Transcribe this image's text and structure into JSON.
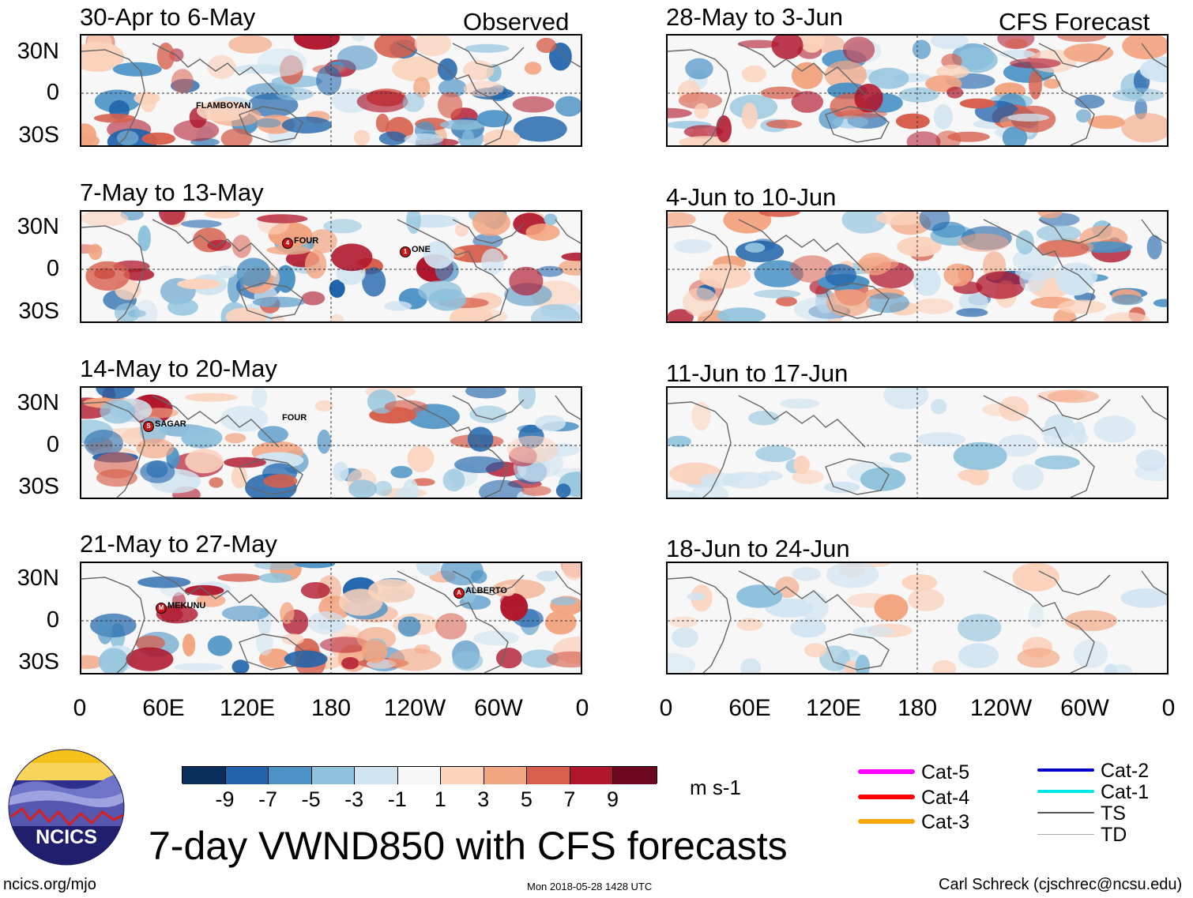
{
  "labels": {
    "observed": "Observed",
    "forecast": "CFS Forecast",
    "lat_n": "30N",
    "lat_0": "0",
    "lat_s": "30S",
    "lon_ticks": [
      "0",
      "60E",
      "120E",
      "180",
      "120W",
      "60W",
      "0"
    ]
  },
  "observed_panels": [
    {
      "period": "30-Apr to 6-May",
      "storms": [
        {
          "name": "FLAMBOYAN",
          "marker": ""
        }
      ]
    },
    {
      "period": "7-May to 13-May",
      "storms": [
        {
          "name": "FOUR",
          "marker": "4"
        },
        {
          "name": "ONE",
          "marker": "1"
        }
      ]
    },
    {
      "period": "14-May to 20-May",
      "storms": [
        {
          "name": "SAGAR",
          "marker": "S"
        },
        {
          "name": "FOUR",
          "marker": ""
        }
      ]
    },
    {
      "period": "21-May to 27-May",
      "storms": [
        {
          "name": "MEKUNU",
          "marker": "M"
        },
        {
          "name": "ALBERTO",
          "marker": "A"
        }
      ]
    }
  ],
  "forecast_panels": [
    {
      "period": "28-May to 3-Jun"
    },
    {
      "period": "4-Jun to 10-Jun"
    },
    {
      "period": "11-Jun to 17-Jun"
    },
    {
      "period": "18-Jun to 24-Jun"
    }
  ],
  "colorbar": {
    "colors": [
      "#0a2e5c",
      "#1f64ab",
      "#4b92c5",
      "#8fc2dd",
      "#d0e4f1",
      "#f7f7f7",
      "#fbd2bc",
      "#f3a480",
      "#d75f4c",
      "#b0162c",
      "#6c0720"
    ],
    "tick_labels": [
      "-9",
      "-7",
      "-5",
      "-3",
      "-1",
      "1",
      "3",
      "5",
      "7",
      "9"
    ],
    "units": "m s-1"
  },
  "track_legend": [
    {
      "label": "Cat-5",
      "color": "#ff00ff"
    },
    {
      "label": "Cat-4",
      "color": "#ff0000"
    },
    {
      "label": "Cat-3",
      "color": "#ffa500"
    },
    {
      "label": "Cat-2",
      "color": "#0000cd"
    },
    {
      "label": "Cat-1",
      "color": "#00e5e5"
    },
    {
      "label": "TS",
      "color": "#555555"
    },
    {
      "label": "TD",
      "color": "#aaaaaa"
    }
  ],
  "logo": {
    "text": "NCICS"
  },
  "main_title": "7-day VWND850 with CFS forecasts",
  "footer": {
    "url": "ncics.org/mjo",
    "timestamp": "Mon 2018-05-28 1428 UTC",
    "credit": "Carl Schreck (cjschrec@ncsu.edu)"
  }
}
